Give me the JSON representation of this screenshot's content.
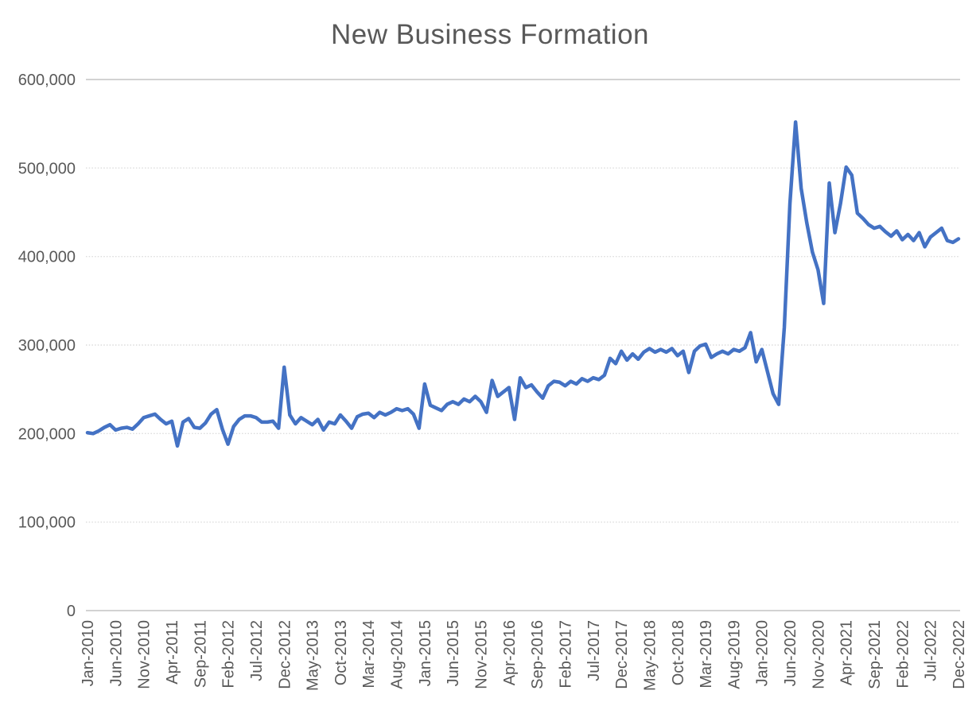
{
  "chart": {
    "title": "New Business Formation"
  },
  "chart_data": {
    "type": "line",
    "title": "New Business Formation",
    "xlabel": "",
    "ylabel": "",
    "legend": "none",
    "grid": "horizontal",
    "ylim": [
      0,
      600000
    ],
    "y_ticks": [
      0,
      100000,
      200000,
      300000,
      400000,
      500000,
      600000
    ],
    "y_tick_labels": [
      "0",
      "100,000",
      "200,000",
      "300,000",
      "400,000",
      "500,000",
      "600,000"
    ],
    "x_months_start": "Jan-2010",
    "x_months_end": "Dec-2022",
    "x_tick_every": 5,
    "x_tick_labels": [
      "Jan-2010",
      "Jun-2010",
      "Nov-2010",
      "Apr-2011",
      "Sep-2011",
      "Feb-2012",
      "Jul-2012",
      "Dec-2012",
      "May-2013",
      "Oct-2013",
      "Mar-2014",
      "Aug-2014",
      "Jan-2015",
      "Jun-2015",
      "Nov-2015",
      "Apr-2016",
      "Sep-2016",
      "Feb-2017",
      "Jul-2017",
      "Dec-2017",
      "May-2018",
      "Oct-2018",
      "Mar-2019",
      "Aug-2019",
      "Jan-2020",
      "Jun-2020",
      "Nov-2020",
      "Apr-2021",
      "Sep-2021",
      "Feb-2022",
      "Jul-2022",
      "Dec-2022"
    ],
    "series": [
      {
        "name": "New Business Formation",
        "color": "#4472C4",
        "values": [
          201000,
          200000,
          203000,
          207000,
          210000,
          204000,
          206000,
          207000,
          205000,
          211000,
          218000,
          220000,
          222000,
          216000,
          211000,
          214000,
          186000,
          213000,
          217000,
          207000,
          206000,
          212000,
          222000,
          227000,
          205000,
          188000,
          208000,
          216000,
          220000,
          220000,
          218000,
          213000,
          213000,
          214000,
          206000,
          275000,
          221000,
          211000,
          218000,
          214000,
          210000,
          216000,
          204000,
          213000,
          211000,
          221000,
          214000,
          206000,
          219000,
          222000,
          223000,
          218000,
          224000,
          221000,
          224000,
          228000,
          226000,
          228000,
          222000,
          206000,
          256000,
          232000,
          229000,
          226000,
          233000,
          236000,
          233000,
          239000,
          236000,
          242000,
          236000,
          224000,
          260000,
          242000,
          247000,
          252000,
          216000,
          263000,
          252000,
          255000,
          247000,
          240000,
          254000,
          259000,
          258000,
          254000,
          259000,
          256000,
          262000,
          259000,
          263000,
          261000,
          266000,
          285000,
          279000,
          293000,
          283000,
          290000,
          284000,
          292000,
          296000,
          292000,
          295000,
          292000,
          296000,
          288000,
          293000,
          269000,
          293000,
          299000,
          301000,
          286000,
          290000,
          293000,
          290000,
          295000,
          293000,
          297000,
          314000,
          281000,
          295000,
          270000,
          245000,
          233000,
          320000,
          460000,
          552000,
          477000,
          438000,
          405000,
          385000,
          347000,
          483000,
          427000,
          460000,
          501000,
          492000,
          449000,
          443000,
          436000,
          432000,
          434000,
          428000,
          423000,
          429000,
          419000,
          425000,
          418000,
          427000,
          411000,
          422000,
          427000,
          432000,
          418000,
          416000,
          420000
        ]
      }
    ],
    "colors": {
      "line": "#4472C4",
      "axis_text": "#595959",
      "title_text": "#595959",
      "gridline_dotted": "#DCDCDC",
      "gridline_solid": "#D2D2D2"
    }
  }
}
